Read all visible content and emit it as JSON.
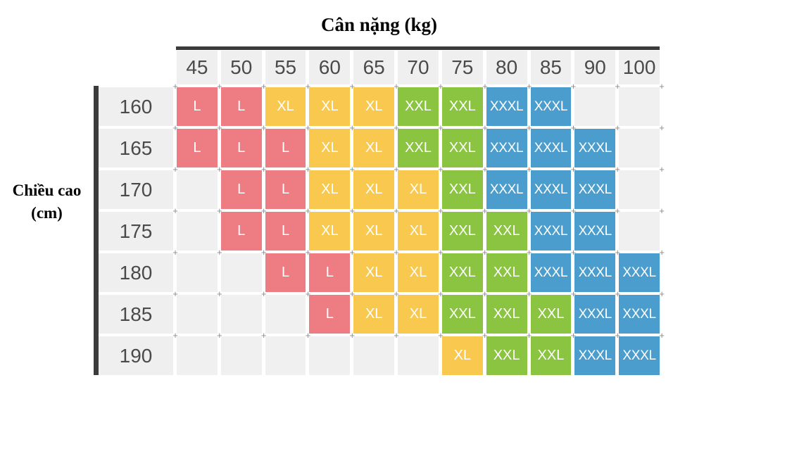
{
  "y_axis": {
    "line1": "Chiều cao",
    "line2": "(cm)"
  },
  "chart_data": {
    "type": "heatmap",
    "title": "Cân nặng (kg)",
    "xlabel": "Cân nặng (kg)",
    "ylabel": "Chiều cao (cm)",
    "x_categories": [
      "45",
      "50",
      "55",
      "60",
      "65",
      "70",
      "75",
      "80",
      "85",
      "90",
      "100"
    ],
    "y_categories": [
      "160",
      "165",
      "170",
      "175",
      "180",
      "185",
      "190"
    ],
    "cells": [
      [
        "L",
        "L",
        "XL",
        "XL",
        "XL",
        "XXL",
        "XXL",
        "XXXL",
        "XXXL",
        "",
        ""
      ],
      [
        "L",
        "L",
        "L",
        "XL",
        "XL",
        "XXL",
        "XXL",
        "XXXL",
        "XXXL",
        "XXXL",
        ""
      ],
      [
        "",
        "L",
        "L",
        "XL",
        "XL",
        "XL",
        "XXL",
        "XXXL",
        "XXXL",
        "XXXL",
        ""
      ],
      [
        "",
        "L",
        "L",
        "XL",
        "XL",
        "XL",
        "XXL",
        "XXL",
        "XXXL",
        "XXXL",
        ""
      ],
      [
        "",
        "",
        "L",
        "L",
        "XL",
        "XL",
        "XXL",
        "XXL",
        "XXXL",
        "XXXL",
        "XXXL"
      ],
      [
        "",
        "",
        "",
        "L",
        "XL",
        "XL",
        "XXL",
        "XXL",
        "XXL",
        "XXXL",
        "XXXL"
      ],
      [
        "",
        "",
        "",
        "",
        "",
        "",
        "XL",
        "XXL",
        "XXL",
        "XXXL",
        "XXXL"
      ]
    ],
    "size_colors": {
      "L": "#ED7C83",
      "XL": "#F9C84F",
      "XXL": "#8BC441",
      "XXXL": "#4A9DCC"
    },
    "cell_text_color": "#FFFFFF",
    "empty_cell_color": "#F0F0F0",
    "header_cell_color": "#EFEFEF",
    "header_text_color": "#4A4A4A",
    "axis_bar_color": "#3B3B3B",
    "legend": "none",
    "grid_marker": "+"
  }
}
